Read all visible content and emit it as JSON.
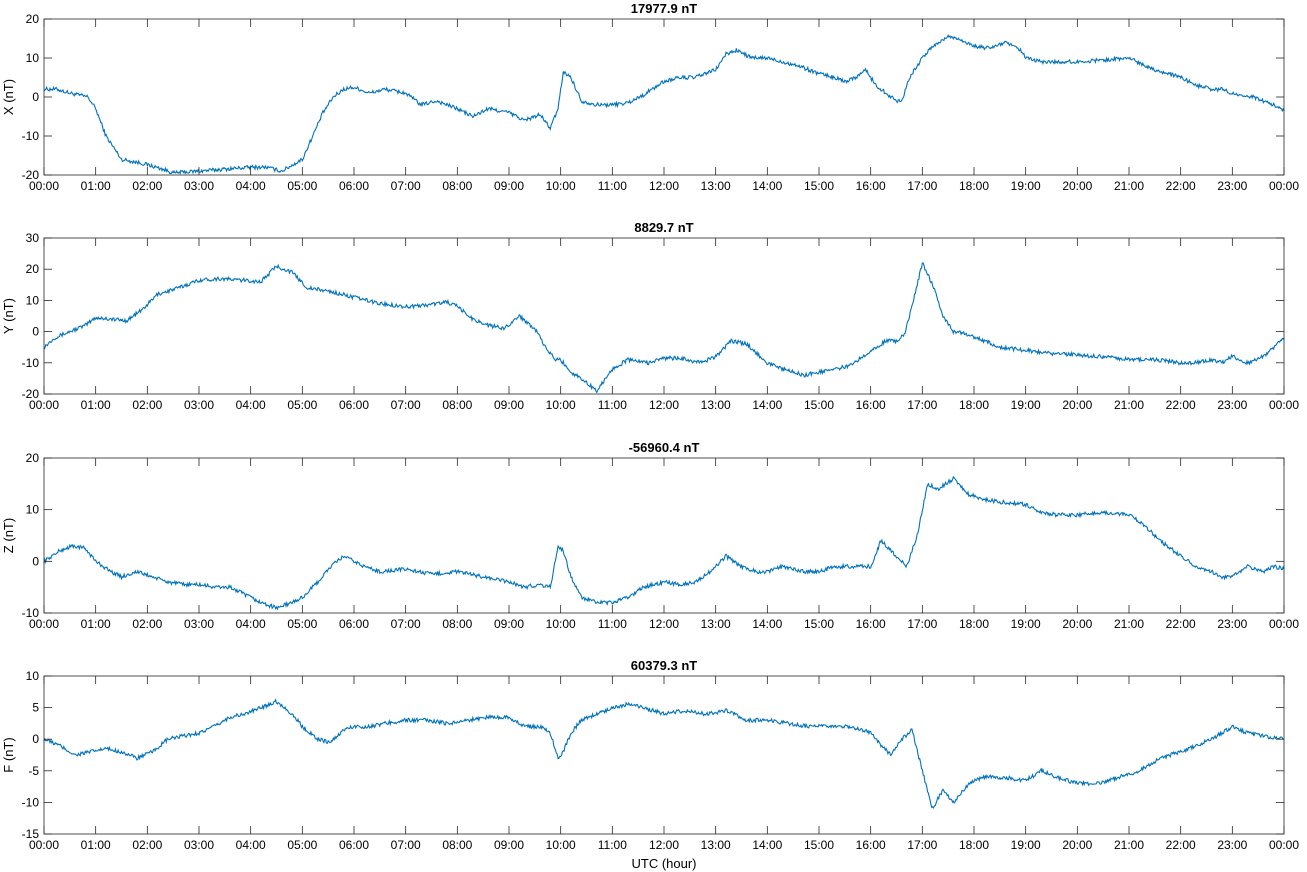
{
  "figure": {
    "xlabel": "UTC (hour)",
    "line_color": "#0072BD",
    "x_tick_labels": [
      "00:00",
      "01:00",
      "02:00",
      "03:00",
      "04:00",
      "05:00",
      "06:00",
      "07:00",
      "08:00",
      "09:00",
      "10:00",
      "11:00",
      "12:00",
      "13:00",
      "14:00",
      "15:00",
      "16:00",
      "17:00",
      "18:00",
      "19:00",
      "20:00",
      "21:00",
      "22:00",
      "23:00",
      "00:00"
    ]
  },
  "chart_data": [
    {
      "type": "line",
      "title": "17977.9 nT",
      "xlabel": "",
      "ylabel": "X (nT)",
      "xlim": [
        0,
        24
      ],
      "ylim": [
        -20,
        20
      ],
      "yticks": [
        -20,
        -10,
        0,
        10,
        20
      ],
      "grid": false,
      "series": [
        {
          "x": [
            0,
            0.25,
            0.5,
            0.85,
            1.0,
            1.2,
            1.5,
            1.9,
            2.3,
            2.5,
            3.0,
            3.5,
            4.0,
            4.3,
            4.6,
            5.0,
            5.2,
            5.4,
            5.6,
            5.8,
            6.0,
            6.3,
            6.6,
            7.0,
            7.3,
            7.6,
            8.0,
            8.3,
            8.6,
            9.0,
            9.3,
            9.6,
            9.8,
            9.95,
            10.05,
            10.2,
            10.4,
            10.7,
            11.0,
            11.3,
            11.6,
            12.0,
            12.3,
            12.6,
            13.0,
            13.2,
            13.4,
            13.7,
            14.0,
            14.3,
            14.6,
            15.0,
            15.3,
            15.5,
            15.7,
            15.9,
            16.1,
            16.3,
            16.5,
            16.6,
            16.75,
            17.0,
            17.2,
            17.5,
            17.7,
            18.0,
            18.3,
            18.6,
            18.9,
            19.0,
            19.3,
            19.6,
            20.0,
            20.5,
            21.0,
            21.5,
            22.0,
            22.3,
            22.6,
            22.8,
            23.0,
            23.2,
            23.4,
            23.6,
            23.8,
            24.0
          ],
          "y": [
            2,
            2,
            1,
            0,
            -3,
            -10,
            -16,
            -17,
            -18.5,
            -19.5,
            -19,
            -18.5,
            -18,
            -18,
            -19,
            -16,
            -10,
            -4,
            0,
            2,
            2.5,
            1,
            2,
            1,
            -2,
            -1,
            -3,
            -5,
            -3,
            -4,
            -6,
            -4.5,
            -8,
            -3,
            6.5,
            5,
            -1,
            -2,
            -2,
            -1.5,
            0.5,
            4,
            5,
            5,
            7,
            11,
            12,
            10,
            10,
            9,
            8,
            6,
            5,
            4,
            5,
            7,
            3,
            1,
            -1,
            -1,
            5,
            10,
            13,
            15.5,
            15,
            13,
            12.5,
            14,
            12,
            10,
            9,
            9,
            9,
            9.5,
            10,
            7,
            5,
            3,
            2,
            2,
            1,
            0,
            0,
            -1,
            -2,
            -3.5
          ]
        }
      ]
    },
    {
      "type": "line",
      "title": "8829.7 nT",
      "xlabel": "",
      "ylabel": "Y (nT)",
      "xlim": [
        0,
        24
      ],
      "ylim": [
        -20,
        30
      ],
      "yticks": [
        -20,
        -10,
        0,
        10,
        20,
        30
      ],
      "grid": false,
      "series": [
        {
          "x": [
            0,
            0.2,
            0.5,
            0.8,
            1.0,
            1.3,
            1.6,
            1.9,
            2.2,
            2.6,
            3.0,
            3.4,
            3.8,
            4.2,
            4.5,
            4.8,
            5.1,
            5.5,
            6.0,
            6.5,
            7.0,
            7.4,
            7.8,
            8.0,
            8.3,
            8.6,
            8.9,
            9.2,
            9.5,
            9.7,
            9.9,
            10.0,
            10.2,
            10.4,
            10.7,
            11.0,
            11.3,
            11.7,
            12.0,
            12.3,
            12.7,
            13.0,
            13.3,
            13.6,
            14.0,
            14.3,
            14.7,
            15.0,
            15.3,
            15.6,
            16.0,
            16.3,
            16.5,
            16.65,
            16.8,
            17.0,
            17.2,
            17.4,
            17.6,
            17.9,
            18.2,
            18.5,
            19.0,
            19.5,
            20.0,
            20.5,
            21.0,
            21.5,
            22.0,
            22.3,
            22.6,
            22.8,
            23.0,
            23.3,
            23.6,
            23.8,
            24.0
          ],
          "y": [
            -5,
            -2,
            0,
            2,
            4.5,
            4,
            3.5,
            7,
            12,
            14,
            16.5,
            17,
            16.5,
            16,
            21,
            19,
            14,
            13,
            11,
            9,
            8,
            8.5,
            9.5,
            8,
            4,
            2,
            1,
            5,
            1,
            -5,
            -9,
            -9,
            -13,
            -15,
            -19,
            -12,
            -9,
            -10,
            -8.5,
            -8.5,
            -10,
            -8,
            -3,
            -4,
            -10,
            -12,
            -14,
            -13,
            -12,
            -11,
            -6,
            -3,
            -3,
            -1,
            8,
            22,
            15,
            5,
            0,
            -1,
            -3,
            -5,
            -6,
            -7,
            -7.5,
            -8,
            -9,
            -9,
            -10,
            -10,
            -9,
            -10,
            -8,
            -10,
            -8,
            -5,
            -2
          ]
        }
      ]
    },
    {
      "type": "line",
      "title": "-56960.4 nT",
      "xlabel": "",
      "ylabel": "Z (nT)",
      "xlim": [
        0,
        24
      ],
      "ylim": [
        -10,
        20
      ],
      "yticks": [
        -10,
        0,
        10,
        20
      ],
      "grid": false,
      "series": [
        {
          "x": [
            0,
            0.3,
            0.55,
            0.8,
            1.0,
            1.3,
            1.5,
            1.8,
            2.1,
            2.4,
            2.7,
            3.0,
            3.3,
            3.6,
            3.9,
            4.2,
            4.5,
            4.8,
            5.0,
            5.3,
            5.55,
            5.8,
            6.0,
            6.2,
            6.5,
            7.0,
            7.5,
            8.0,
            8.5,
            9.0,
            9.3,
            9.6,
            9.8,
            9.95,
            10.05,
            10.2,
            10.4,
            10.7,
            11.0,
            11.3,
            11.6,
            12.0,
            12.3,
            12.6,
            12.9,
            13.2,
            13.5,
            13.8,
            14.0,
            14.3,
            14.7,
            15.0,
            15.3,
            15.6,
            16.0,
            16.2,
            16.3,
            16.5,
            16.7,
            16.9,
            17.1,
            17.3,
            17.6,
            17.9,
            18.2,
            18.5,
            19.0,
            19.3,
            19.6,
            20.0,
            20.5,
            21.0,
            21.3,
            21.6,
            22.0,
            22.3,
            22.6,
            22.8,
            23.0,
            23.3,
            23.6,
            23.8,
            24.0
          ],
          "y": [
            0,
            2,
            3,
            2.5,
            0,
            -2,
            -3,
            -2,
            -3,
            -4,
            -4.5,
            -4.5,
            -5,
            -5,
            -6.5,
            -8,
            -9,
            -8,
            -7,
            -4,
            -1,
            1,
            0,
            -1,
            -2,
            -1.5,
            -2.5,
            -2,
            -3,
            -4,
            -5,
            -4.5,
            -5,
            3,
            2,
            -3,
            -7,
            -8,
            -8,
            -7,
            -5,
            -4,
            -4.5,
            -4,
            -2,
            1,
            -1,
            -2,
            -2,
            -1,
            -2,
            -2,
            -1,
            -1,
            -1,
            4,
            3,
            1,
            -1,
            5,
            15,
            14,
            16,
            13,
            12,
            11.5,
            11,
            9.5,
            9,
            9,
            9.5,
            9,
            7,
            4,
            1,
            -1,
            -2,
            -3,
            -3,
            -1,
            -2,
            -1,
            -1.5
          ]
        }
      ]
    },
    {
      "type": "line",
      "title": "60379.3 nT",
      "xlabel": "UTC (hour)",
      "ylabel": "F (nT)",
      "xlim": [
        0,
        24
      ],
      "ylim": [
        -15,
        10
      ],
      "yticks": [
        -15,
        -10,
        -5,
        0,
        5,
        10
      ],
      "grid": false,
      "series": [
        {
          "x": [
            0,
            0.3,
            0.6,
            0.9,
            1.2,
            1.5,
            1.8,
            2.1,
            2.4,
            2.7,
            3.0,
            3.3,
            3.6,
            3.9,
            4.2,
            4.5,
            4.8,
            5.0,
            5.3,
            5.55,
            5.8,
            6.0,
            6.3,
            6.6,
            7.0,
            7.4,
            7.8,
            8.2,
            8.6,
            9.0,
            9.3,
            9.6,
            9.8,
            9.95,
            10.05,
            10.2,
            10.4,
            10.7,
            11.0,
            11.3,
            11.6,
            12.0,
            12.4,
            12.8,
            13.2,
            13.6,
            14.0,
            14.4,
            14.8,
            15.2,
            15.6,
            16.0,
            16.2,
            16.4,
            16.6,
            16.8,
            17.0,
            17.2,
            17.4,
            17.6,
            17.9,
            18.2,
            18.5,
            19.0,
            19.3,
            19.6,
            20.0,
            20.4,
            20.8,
            21.2,
            21.6,
            22.0,
            22.3,
            22.6,
            22.8,
            23.0,
            23.3,
            23.6,
            24.0
          ],
          "y": [
            0,
            -1,
            -2.5,
            -2,
            -1.5,
            -2,
            -3,
            -2,
            0,
            0.5,
            1,
            2,
            3.5,
            4,
            5,
            6,
            4,
            2,
            0,
            -0.5,
            1.5,
            2,
            2,
            2.5,
            3,
            3,
            2.5,
            3,
            3.5,
            3.5,
            2,
            2,
            1,
            -3,
            -2,
            1,
            3,
            4,
            5,
            5.5,
            5,
            4,
            4.5,
            4,
            4.5,
            3,
            3,
            2.5,
            2,
            2,
            2,
            1,
            -1,
            -2.5,
            0,
            1.5,
            -5,
            -11,
            -8,
            -10,
            -7,
            -6,
            -6,
            -6.5,
            -5,
            -6,
            -7,
            -7,
            -6,
            -5,
            -3,
            -2,
            -1,
            0,
            1,
            2,
            1,
            0.5,
            0
          ]
        }
      ]
    }
  ]
}
